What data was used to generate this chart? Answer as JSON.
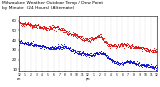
{
  "title_line1": "Milwaukee Weather Outdoor Temp / Dew Point",
  "title_line2": "by Minute  (24 Hours) (Alternate)",
  "title_fontsize": 3.5,
  "xlim": [
    0,
    1440
  ],
  "ylim": [
    8,
    65
  ],
  "ytick_positions": [
    10,
    20,
    30,
    40,
    50,
    60
  ],
  "ytick_labels": [
    "10",
    "20",
    "30",
    "40",
    "50",
    "60"
  ],
  "xtick_positions": [
    0,
    60,
    120,
    180,
    240,
    300,
    360,
    420,
    480,
    540,
    600,
    660,
    720,
    780,
    840,
    900,
    960,
    1020,
    1080,
    1140,
    1200,
    1260,
    1320,
    1380,
    1440
  ],
  "xtick_labels_row1": [
    "12",
    "1",
    "2",
    "3",
    "4",
    "5",
    "6",
    "7",
    "8",
    "9",
    "10",
    "11",
    "12",
    "1",
    "2",
    "3",
    "4",
    "5",
    "6",
    "7",
    "8",
    "9",
    "10",
    "11",
    "12"
  ],
  "xtick_labels_row2": [
    "am",
    "",
    "",
    "",
    "",
    "",
    "",
    "",
    "",
    "",
    "",
    "",
    "pm",
    "",
    "",
    "",
    "",
    "",
    "",
    "",
    "",
    "",
    "",
    "",
    ""
  ],
  "grid_color": "#999999",
  "temp_color": "#dd0000",
  "dew_color": "#0000cc",
  "bg_color": "#ffffff",
  "dot_size": 0.4,
  "temp_start": 58,
  "temp_end": 28,
  "dew_start": 38,
  "dew_end": 12
}
